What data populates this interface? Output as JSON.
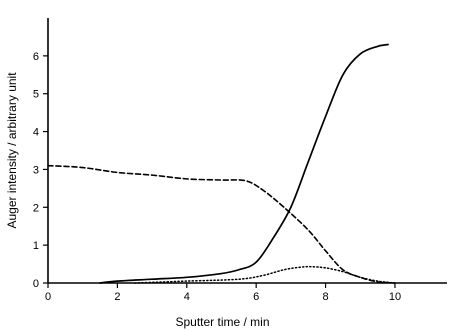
{
  "chart_data": {
    "type": "line",
    "title": "",
    "xlabel": "Sputter time / min",
    "ylabel": "Auger intensity / arbitrary unit",
    "xlim": [
      0,
      11.5
    ],
    "ylim": [
      0,
      7
    ],
    "x_ticks": [
      0,
      2,
      4,
      6,
      8,
      10
    ],
    "y_ticks": [
      0,
      1,
      2,
      3,
      4,
      5,
      6
    ],
    "grid": false,
    "legend": "none",
    "series": [
      {
        "style": "solid",
        "x": [
          1.5,
          2,
          3,
          4,
          5,
          5.5,
          6,
          6.5,
          7,
          7.5,
          8,
          8.5,
          9,
          9.5,
          9.8
        ],
        "y": [
          0.0,
          0.05,
          0.1,
          0.15,
          0.25,
          0.35,
          0.55,
          1.2,
          2.0,
          3.2,
          4.4,
          5.5,
          6.05,
          6.25,
          6.3
        ]
      },
      {
        "style": "dashed",
        "x": [
          0,
          1,
          2,
          3,
          4,
          5,
          5.7,
          6.2,
          6.8,
          7.5,
          8,
          8.5,
          9,
          9.5,
          10
        ],
        "y": [
          3.1,
          3.05,
          2.92,
          2.85,
          2.75,
          2.72,
          2.7,
          2.45,
          2.0,
          1.4,
          0.85,
          0.35,
          0.15,
          0.03,
          0.0
        ]
      },
      {
        "style": "dotted",
        "x": [
          2.5,
          4,
          5.5,
          6.2,
          6.8,
          7.3,
          7.6,
          8.0,
          8.5,
          9.0,
          9.5,
          10
        ],
        "y": [
          0.0,
          0.05,
          0.1,
          0.2,
          0.35,
          0.42,
          0.43,
          0.4,
          0.3,
          0.15,
          0.05,
          0.0
        ]
      }
    ]
  }
}
